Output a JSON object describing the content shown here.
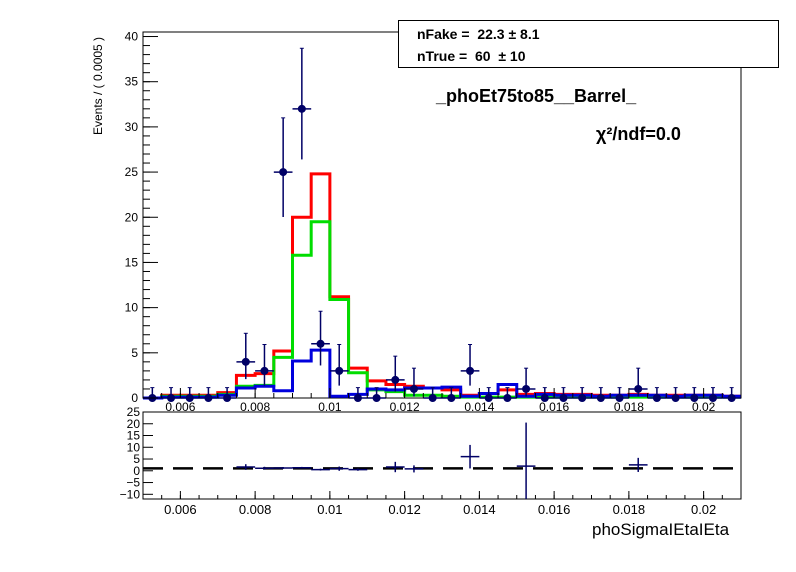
{
  "fit": {
    "nfake_label": "nFake =",
    "nfake_value": "22.3",
    "nfake_error": "± 8.1",
    "ntrue_label": "nTrue =",
    "ntrue_value": "60",
    "ntrue_error": "± 10"
  },
  "chi2_text": "χ²/ndf=0.0",
  "chart_data": [
    {
      "type": "line",
      "title": "_phoEt75to85__Barrel_",
      "xlabel": "",
      "ylabel": "Events / ( 0.0005 )",
      "xlim": [
        0.005,
        0.021
      ],
      "ylim": [
        0,
        40.5
      ],
      "xticks": [
        0.006,
        0.008,
        0.01,
        0.012,
        0.014,
        0.016,
        0.018,
        0.02
      ],
      "xtick_labels": [
        "0.006",
        "0.008",
        "0.01",
        "0.012",
        "0.014",
        "0.016",
        "0.018",
        "0.02"
      ],
      "yticks": [
        0,
        5,
        10,
        15,
        20,
        25,
        30,
        35,
        40
      ],
      "ytick_labels": [
        "0",
        "5",
        "10",
        "15",
        "20",
        "25",
        "30",
        "35",
        "40"
      ],
      "bin_edges": [
        0.005,
        0.0055,
        0.006,
        0.0065,
        0.007,
        0.0075,
        0.008,
        0.0085,
        0.009,
        0.0095,
        0.01,
        0.0105,
        0.011,
        0.0115,
        0.012,
        0.0125,
        0.013,
        0.0135,
        0.014,
        0.0145,
        0.015,
        0.0155,
        0.016,
        0.0165,
        0.017,
        0.0175,
        0.018,
        0.0185,
        0.019,
        0.0195,
        0.02,
        0.0205,
        0.021
      ],
      "series": [
        {
          "color": "#ff0000",
          "values": [
            0,
            0.3,
            0.3,
            0.3,
            0.6,
            2.5,
            2.7,
            5.2,
            20.0,
            24.8,
            11.2,
            3.3,
            1.9,
            1.5,
            1.3,
            1.1,
            0.9,
            0.3,
            0.5,
            0.9,
            0.4,
            0.5,
            0.4,
            0.4,
            0.3,
            0.3,
            0.4,
            0.3,
            0.3,
            0.3,
            0.3,
            0.2
          ]
        },
        {
          "color": "#00dd00",
          "values": [
            0,
            0.2,
            0.2,
            0.2,
            0.4,
            1.3,
            1.4,
            4.5,
            15.8,
            19.5,
            10.9,
            2.8,
            0.9,
            0.7,
            0.3,
            0.3,
            0.2,
            0.1,
            0.1,
            0.1,
            0.1,
            0.1,
            0.1,
            0.1,
            0.1,
            0.1,
            0.1,
            0.1,
            0.1,
            0.1,
            0.1,
            0.1
          ]
        },
        {
          "color": "#0000dd",
          "values": [
            0,
            0.1,
            0.1,
            0.1,
            0.3,
            1.1,
            1.3,
            0.8,
            4.1,
            5.3,
            0.2,
            0.4,
            1.0,
            0.9,
            1.1,
            1.1,
            1.2,
            0.2,
            0.5,
            1.5,
            0.2,
            0.4,
            0.3,
            0.3,
            0.2,
            0.3,
            0.3,
            0.3,
            0.2,
            0.3,
            0.3,
            0.2
          ]
        }
      ],
      "points": {
        "color": "#000066",
        "x": [
          0.00525,
          0.00575,
          0.00625,
          0.00675,
          0.00725,
          0.00775,
          0.00825,
          0.00875,
          0.00925,
          0.00975,
          0.01025,
          0.01075,
          0.01125,
          0.01175,
          0.01225,
          0.01275,
          0.01325,
          0.01375,
          0.01425,
          0.01475,
          0.01525,
          0.01575,
          0.01625,
          0.01675,
          0.01725,
          0.01775,
          0.01825,
          0.01875,
          0.01925,
          0.01975,
          0.02025,
          0.02075
        ],
        "y": [
          0,
          0,
          0,
          0,
          0,
          4,
          3,
          25,
          32,
          6,
          3,
          0,
          0,
          2,
          1,
          0,
          0,
          3,
          0,
          0,
          1,
          0,
          0,
          0,
          0,
          0,
          1,
          0,
          0,
          0,
          0,
          0
        ],
        "yerr_up": [
          1.15,
          1.15,
          1.15,
          1.15,
          1.15,
          3.16,
          2.92,
          6.0,
          6.7,
          3.6,
          2.92,
          1.15,
          1.15,
          2.63,
          2.3,
          1.15,
          1.15,
          2.92,
          1.15,
          1.15,
          2.3,
          1.15,
          1.15,
          1.15,
          1.15,
          1.15,
          2.3,
          1.15,
          1.15,
          1.15,
          1.15,
          1.15
        ],
        "yerr_down": [
          0,
          0,
          0,
          0,
          0,
          1.91,
          1.63,
          4.97,
          5.6,
          2.4,
          1.63,
          0,
          0,
          1.29,
          0.83,
          0,
          0,
          1.63,
          0,
          0,
          0.83,
          0,
          0,
          0,
          0,
          0,
          0.83,
          0,
          0,
          0,
          0,
          0
        ]
      }
    },
    {
      "type": "scatter",
      "xlabel": "phoSigmaIEtaIEta",
      "ylabel": "",
      "xlim": [
        0.005,
        0.021
      ],
      "ylim": [
        -12,
        25
      ],
      "xticks": [
        0.006,
        0.008,
        0.01,
        0.012,
        0.014,
        0.016,
        0.018,
        0.02
      ],
      "xtick_labels": [
        "0.006",
        "0.008",
        "0.01",
        "0.012",
        "0.014",
        "0.016",
        "0.018",
        "0.02"
      ],
      "yticks": [
        -10,
        -5,
        0,
        5,
        10,
        15,
        20,
        25
      ],
      "ytick_labels": [
        "−10",
        "−5",
        "0",
        "5",
        "10",
        "15",
        "20",
        "25"
      ],
      "reference_line": 1,
      "points": {
        "color": "#000066",
        "x": [
          0.00775,
          0.00825,
          0.00875,
          0.00925,
          0.00975,
          0.01025,
          0.01075,
          0.01175,
          0.01225,
          0.01375,
          0.01525,
          0.01825
        ],
        "y": [
          1.6,
          1.1,
          1.2,
          1.3,
          0.5,
          0.9,
          0.5,
          1.6,
          0.8,
          6.0,
          2.0,
          2.5
        ],
        "yerr": [
          1.2,
          0.6,
          0.4,
          0.35,
          0.4,
          0.9,
          0.5,
          2.2,
          1.5,
          5.0,
          18.5,
          3.0
        ]
      }
    }
  ]
}
